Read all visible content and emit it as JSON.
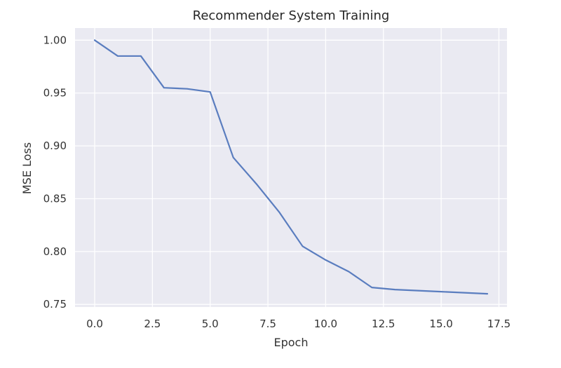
{
  "chart_data": {
    "type": "line",
    "title": "Recommender System Training",
    "xlabel": "Epoch",
    "ylabel": "MSE Loss",
    "xlim": [
      -0.85,
      17.85
    ],
    "ylim": [
      0.7475,
      1.0115
    ],
    "xticks": [
      0.0,
      2.5,
      5.0,
      7.5,
      10.0,
      12.5,
      15.0,
      17.5
    ],
    "xtick_labels": [
      "0.0",
      "2.5",
      "5.0",
      "7.5",
      "10.0",
      "12.5",
      "15.0",
      "17.5"
    ],
    "yticks": [
      0.75,
      0.8,
      0.85,
      0.9,
      0.95,
      1.0
    ],
    "ytick_labels": [
      "0.75",
      "0.80",
      "0.85",
      "0.90",
      "0.95",
      "1.00"
    ],
    "grid": true,
    "series": [
      {
        "x": [
          0,
          1,
          2,
          3,
          4,
          5,
          6,
          7,
          8,
          9,
          10,
          11,
          12,
          13,
          14,
          15,
          16,
          17
        ],
        "y": [
          1.0,
          0.985,
          0.985,
          0.955,
          0.954,
          0.951,
          0.889,
          0.864,
          0.837,
          0.805,
          0.792,
          0.781,
          0.766,
          0.764,
          0.763,
          0.762,
          0.761,
          0.76
        ],
        "color": "#5a7dbf"
      }
    ],
    "colors": {
      "background": "#eaeaf2",
      "grid": "#ffffff",
      "line": "#5a7dbf"
    }
  }
}
